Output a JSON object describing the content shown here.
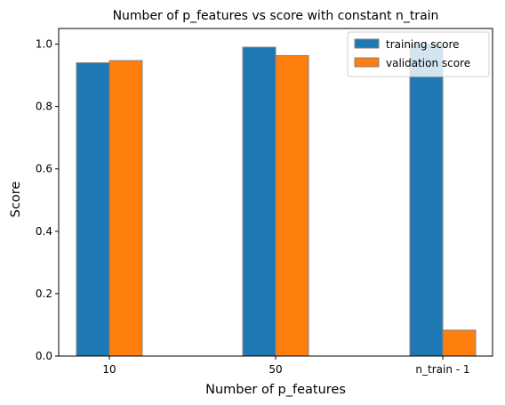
{
  "chart_data": {
    "type": "bar",
    "title": "Number of p_features vs score with constant n_train",
    "xlabel": "Number of p_features",
    "ylabel": "Score",
    "categories": [
      "10",
      "50",
      "n_train - 1"
    ],
    "series": [
      {
        "name": "training score",
        "color": "#1f77b4",
        "values": [
          0.94,
          0.99,
          1.0
        ]
      },
      {
        "name": "validation score",
        "color": "#ff7f0e",
        "values": [
          0.947,
          0.963,
          0.083
        ]
      }
    ],
    "ylim": [
      0,
      1.05
    ],
    "yticks": [
      "0.0",
      "0.2",
      "0.4",
      "0.6",
      "0.8",
      "1.0"
    ],
    "grid": false,
    "legend_position": "top-right",
    "bar_edge_color": "#808080"
  }
}
